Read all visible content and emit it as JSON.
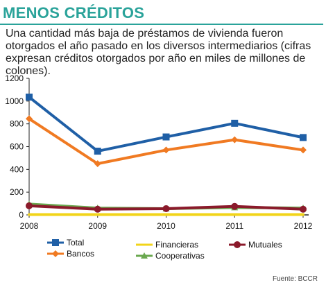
{
  "header": {
    "title": "MENOS CRÉDITOS",
    "subtitle": "Una cantidad más baja de préstamos de vivienda fueron otorgados el año pasado en los diversos intermediarios (cifras expresan créditos otorgados por año en miles de millones de  colones)."
  },
  "source": "Fuente: BCCR",
  "chart_data": {
    "type": "line",
    "title": "",
    "xlabel": "",
    "ylabel": "",
    "categories": [
      "2008",
      "2009",
      "2010",
      "2011",
      "2012"
    ],
    "ylim": [
      0,
      1200
    ],
    "yticks": [
      0,
      200,
      400,
      600,
      800,
      1000,
      1200
    ],
    "grid": false,
    "legend_position": "bottom",
    "series": [
      {
        "name": "Total",
        "color": "#1f5fa6",
        "marker": "square",
        "values": [
          1035,
          560,
          685,
          805,
          680
        ]
      },
      {
        "name": "Bancos",
        "color": "#f07a22",
        "marker": "diamond",
        "values": [
          845,
          450,
          570,
          660,
          570
        ]
      },
      {
        "name": "Financieras",
        "color": "#f2d41a",
        "marker": "none",
        "values": [
          3,
          3,
          3,
          3,
          3
        ]
      },
      {
        "name": "Cooperativas",
        "color": "#6aa84f",
        "marker": "triangle",
        "values": [
          95,
          60,
          55,
          65,
          60
        ]
      },
      {
        "name": "Mutuales",
        "color": "#8b1a2b",
        "marker": "circle",
        "values": [
          80,
          50,
          55,
          75,
          50
        ]
      }
    ]
  }
}
